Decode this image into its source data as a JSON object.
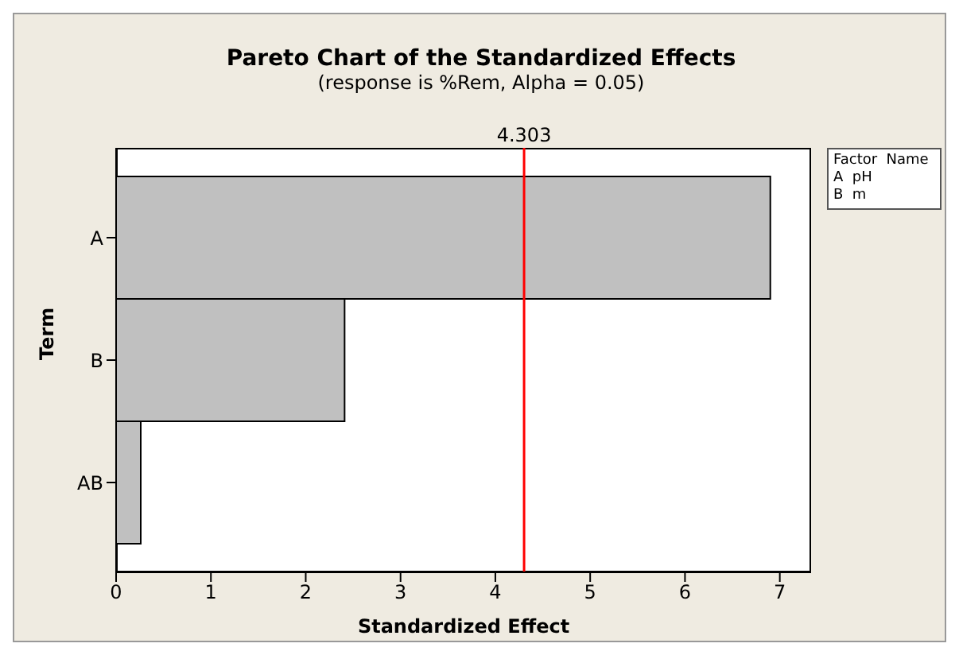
{
  "chart_data": {
    "type": "bar",
    "orientation": "horizontal",
    "title": "Pareto Chart of the Standardized Effects",
    "subtitle": "(response is %Rem, Alpha = 0.05)",
    "xlabel": "Standardized Effect",
    "ylabel": "Term",
    "categories": [
      "A",
      "B",
      "AB"
    ],
    "values": [
      6.9,
      2.41,
      0.26
    ],
    "color": "#c0c0c0",
    "xlim": [
      0,
      7.33
    ],
    "xticks": [
      0,
      1,
      2,
      3,
      4,
      5,
      6,
      7
    ],
    "grid": false,
    "legend": false,
    "ref_lines": [
      {
        "axis": "x",
        "value": 4.303,
        "label": "4.303",
        "color": "#ff0000"
      }
    ],
    "annotations": [
      "Factor  Name",
      "A  pH",
      "B  m"
    ]
  }
}
